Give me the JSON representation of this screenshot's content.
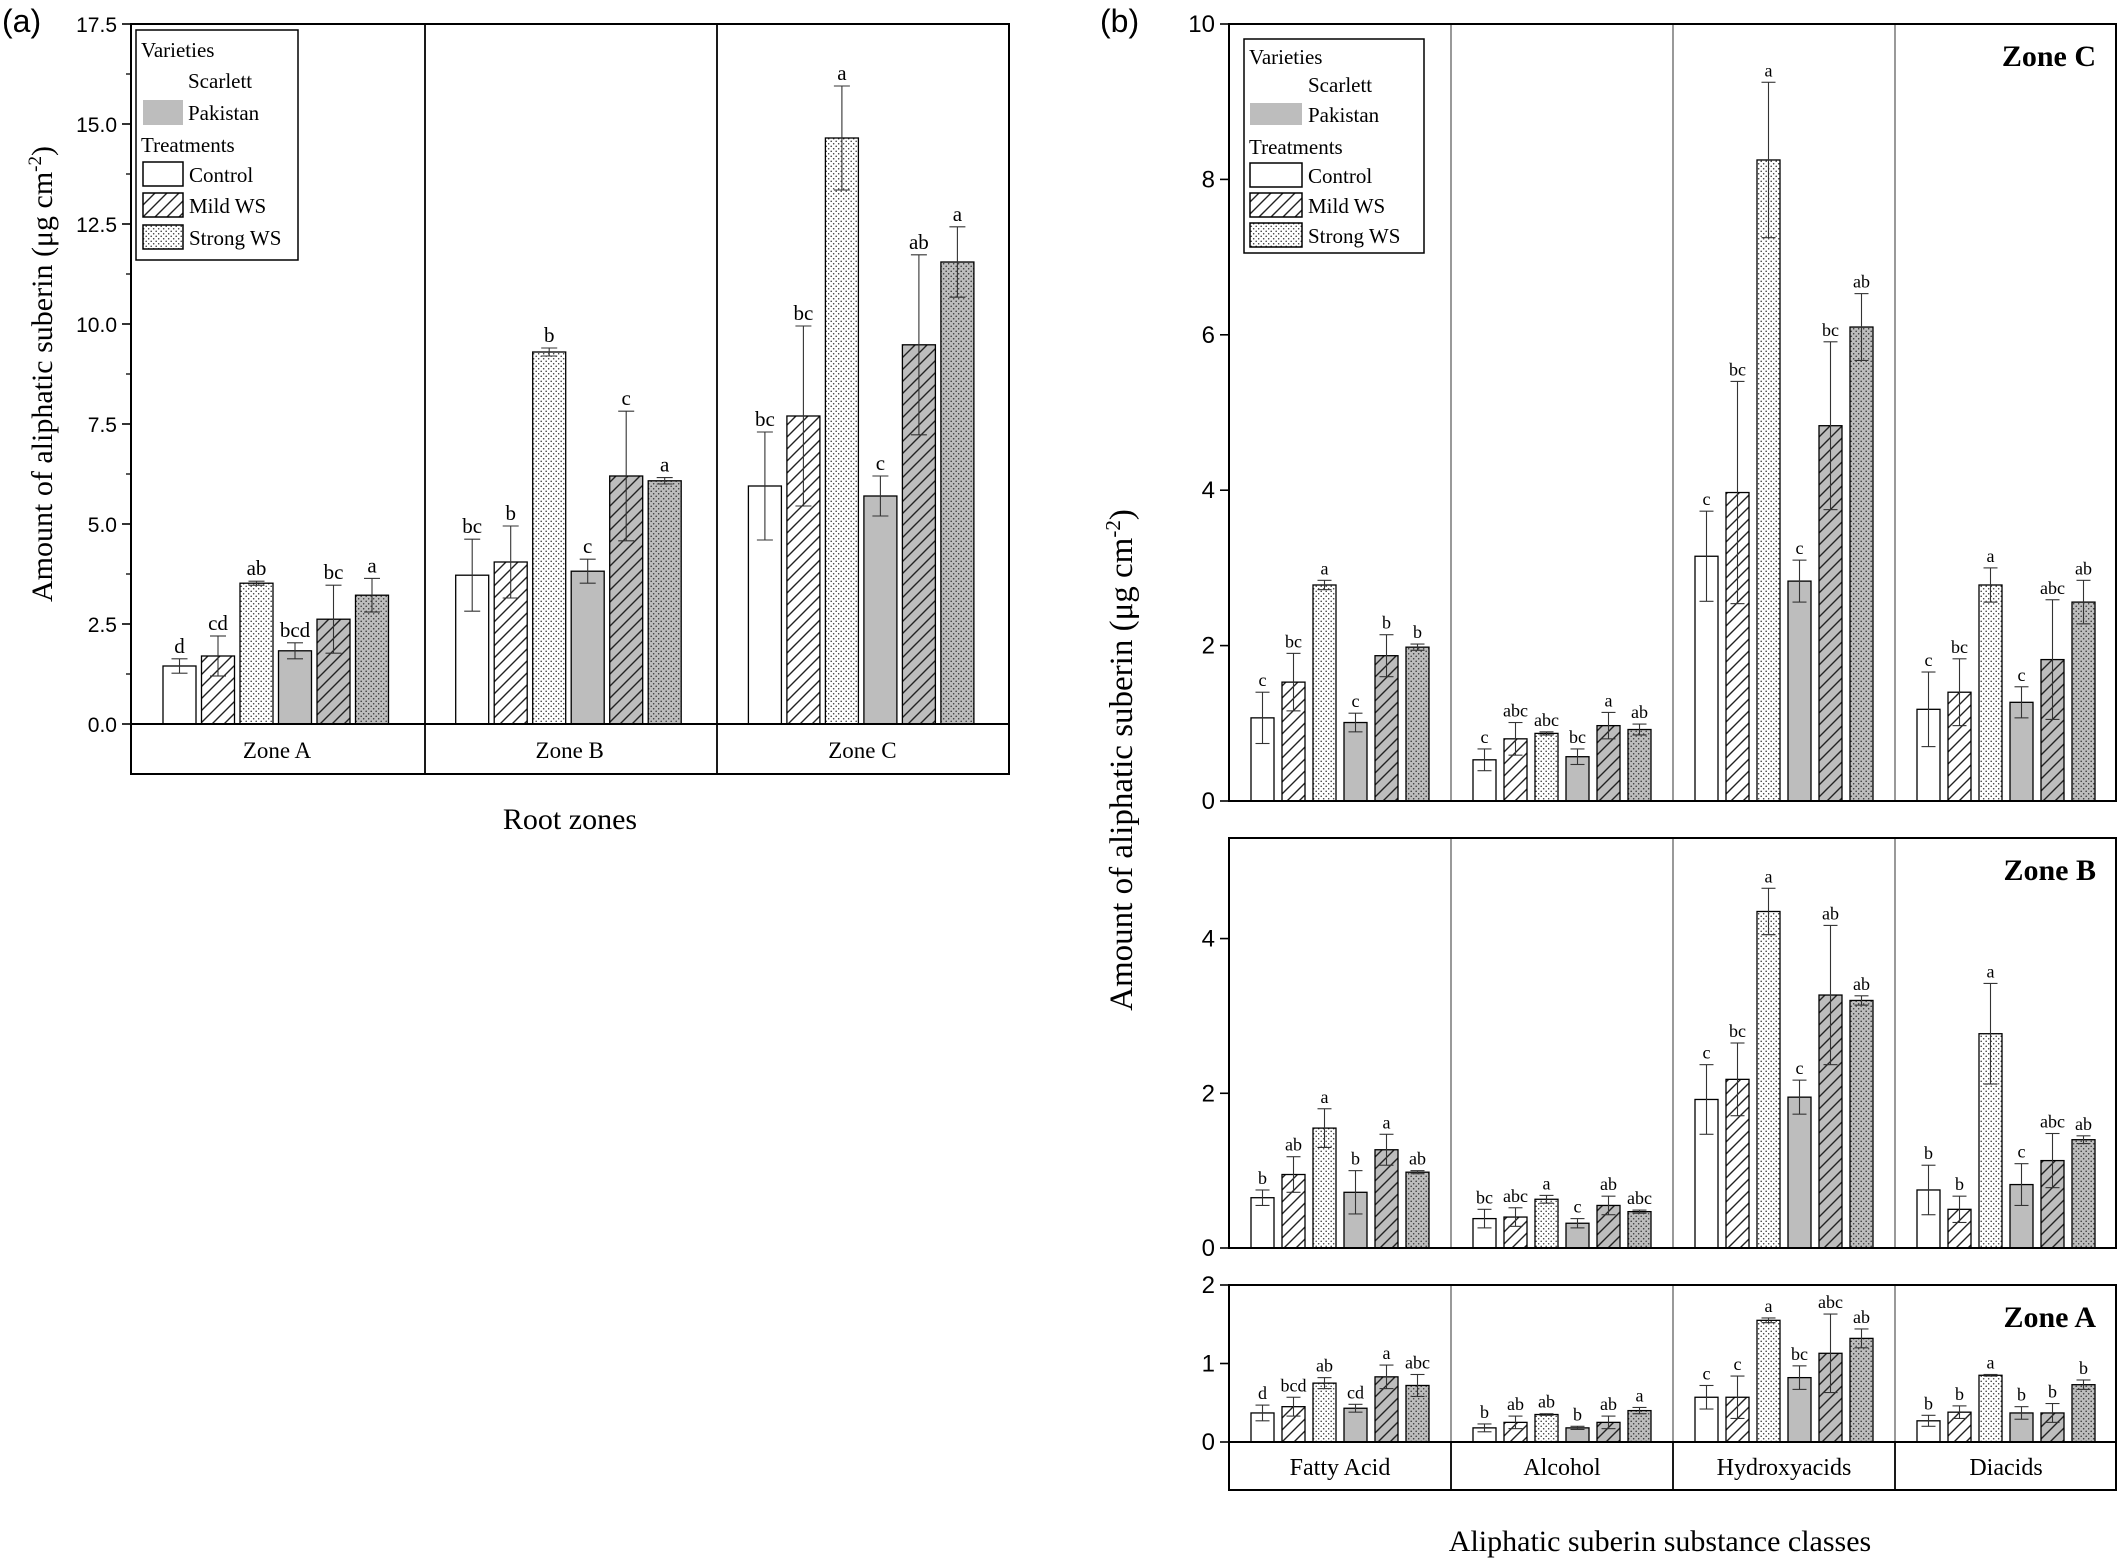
{
  "colors": {
    "scarlett": "#ffffff",
    "pakistan": "#bdbdbd",
    "axis": "#000000",
    "error_bar": "#333333"
  },
  "chart_data": [
    {
      "panel_label": "(a)",
      "type": "bar",
      "xlabel": "Root zones",
      "ylabel": "Amount of aliphatic suberin (μg cm",
      "ylabel_sup": "-2",
      "ylabel_tail": ")",
      "ylim": [
        0,
        17.5
      ],
      "yticks": [
        "0.0",
        "2.5",
        "5.0",
        "7.5",
        "10.0",
        "12.5",
        "15.0",
        "17.5"
      ],
      "categories": [
        "Zone A",
        "Zone B",
        "Zone C"
      ],
      "legend": {
        "varieties_title": "Varieties",
        "varieties": [
          {
            "label": "Scarlett",
            "fill": "none"
          },
          {
            "label": "Pakistan",
            "fill": "gray"
          }
        ],
        "treatments_title": "Treatments",
        "treatments": [
          {
            "label": "Control",
            "pattern": "none"
          },
          {
            "label": "Mild WS",
            "pattern": "hatch"
          },
          {
            "label": "Strong WS",
            "pattern": "dots"
          }
        ]
      },
      "series_order": [
        "Scarlett Control",
        "Scarlett Mild WS",
        "Scarlett Strong WS",
        "Pakistan Control",
        "Pakistan Mild WS",
        "Pakistan Strong WS"
      ],
      "groups": [
        {
          "category": "Zone A",
          "values": [
            1.45,
            1.7,
            3.52,
            1.83,
            2.62,
            3.22
          ],
          "errors": [
            0.18,
            0.5,
            0.05,
            0.2,
            0.85,
            0.42
          ],
          "letters": [
            "d",
            "cd",
            "ab",
            "bcd",
            "bc",
            "a"
          ]
        },
        {
          "category": "Zone B",
          "values": [
            3.72,
            4.05,
            9.3,
            3.82,
            6.2,
            6.08
          ],
          "errors": [
            0.9,
            0.9,
            0.1,
            0.3,
            1.62,
            0.08
          ],
          "letters": [
            "bc",
            "b",
            "b",
            "c",
            "c",
            "a"
          ]
        },
        {
          "category": "Zone C",
          "values": [
            5.95,
            7.7,
            14.65,
            5.7,
            9.48,
            11.55
          ],
          "errors": [
            1.35,
            2.25,
            1.3,
            0.5,
            2.25,
            0.88
          ],
          "letters": [
            "bc",
            "bc",
            "a",
            "c",
            "ab",
            "a"
          ]
        }
      ]
    },
    {
      "panel_label": "(b)",
      "type": "bar",
      "xlabel": "Aliphatic suberin substance classes",
      "ylabel": "Amount of aliphatic suberin (μg cm",
      "ylabel_sup": "-2",
      "ylabel_tail": ")",
      "categories": [
        "Fatty Acid",
        "Alcohol",
        "Hydroxyacids",
        "Diacids"
      ],
      "series_order": [
        "Scarlett Control",
        "Scarlett Mild WS",
        "Scarlett Strong WS",
        "Pakistan Control",
        "Pakistan Mild WS",
        "Pakistan Strong WS"
      ],
      "legend": {
        "varieties_title": "Varieties",
        "varieties": [
          {
            "label": "Scarlett",
            "fill": "none"
          },
          {
            "label": "Pakistan",
            "fill": "gray"
          }
        ],
        "treatments_title": "Treatments",
        "treatments": [
          {
            "label": "Control",
            "pattern": "none"
          },
          {
            "label": "Mild WS",
            "pattern": "hatch"
          },
          {
            "label": "Strong WS",
            "pattern": "dots"
          }
        ]
      },
      "subpanels": [
        {
          "zone_title": "Zone C",
          "ylim": [
            0,
            10
          ],
          "yticks": [
            "0",
            "2",
            "4",
            "6",
            "8",
            "10"
          ],
          "groups": [
            {
              "category": "Fatty Acid",
              "values": [
                1.07,
                1.53,
                2.78,
                1.01,
                1.87,
                1.98
              ],
              "errors": [
                0.33,
                0.37,
                0.06,
                0.12,
                0.27,
                0.04
              ],
              "letters": [
                "c",
                "bc",
                "a",
                "c",
                "b",
                "b"
              ]
            },
            {
              "category": "Alcohol",
              "values": [
                0.53,
                0.8,
                0.87,
                0.57,
                0.97,
                0.92
              ],
              "errors": [
                0.14,
                0.21,
                0.02,
                0.1,
                0.17,
                0.07
              ],
              "letters": [
                "c",
                "abc",
                "abc",
                "bc",
                "a",
                "ab"
              ]
            },
            {
              "category": "Hydroxyacids",
              "values": [
                3.15,
                3.97,
                8.25,
                2.83,
                4.83,
                6.1
              ],
              "errors": [
                0.58,
                1.43,
                1.0,
                0.27,
                1.08,
                0.43
              ],
              "letters": [
                "c",
                "bc",
                "a",
                "c",
                "bc",
                "ab"
              ]
            },
            {
              "category": "Diacids",
              "values": [
                1.18,
                1.4,
                2.78,
                1.27,
                1.82,
                2.56
              ],
              "errors": [
                0.48,
                0.43,
                0.22,
                0.2,
                0.77,
                0.28
              ],
              "letters": [
                "c",
                "bc",
                "a",
                "c",
                "abc",
                "ab"
              ]
            }
          ]
        },
        {
          "zone_title": "Zone B",
          "ylim": [
            0,
            5.3
          ],
          "yticks": [
            "0",
            "2",
            "4"
          ],
          "groups": [
            {
              "category": "Fatty Acid",
              "values": [
                0.65,
                0.95,
                1.55,
                0.72,
                1.27,
                0.98
              ],
              "errors": [
                0.1,
                0.23,
                0.25,
                0.28,
                0.2,
                0.02
              ],
              "letters": [
                "b",
                "ab",
                "a",
                "b",
                "a",
                "ab"
              ]
            },
            {
              "category": "Alcohol",
              "values": [
                0.38,
                0.4,
                0.63,
                0.32,
                0.55,
                0.47
              ],
              "errors": [
                0.12,
                0.12,
                0.05,
                0.06,
                0.12,
                0.02
              ],
              "letters": [
                "bc",
                "abc",
                "a",
                "c",
                "ab",
                "abc"
              ]
            },
            {
              "category": "Hydroxyacids",
              "values": [
                1.92,
                2.18,
                4.35,
                1.95,
                3.27,
                3.2
              ],
              "errors": [
                0.45,
                0.47,
                0.3,
                0.22,
                0.9,
                0.06
              ],
              "letters": [
                "c",
                "bc",
                "a",
                "c",
                "ab",
                "ab"
              ]
            },
            {
              "category": "Diacids",
              "values": [
                0.75,
                0.5,
                2.77,
                0.82,
                1.13,
                1.4
              ],
              "errors": [
                0.32,
                0.17,
                0.65,
                0.27,
                0.35,
                0.05
              ],
              "letters": [
                "b",
                "b",
                "a",
                "c",
                "abc",
                "ab"
              ]
            }
          ]
        },
        {
          "zone_title": "Zone A",
          "ylim": [
            0,
            2
          ],
          "yticks": [
            "0",
            "1",
            "2"
          ],
          "groups": [
            {
              "category": "Fatty Acid",
              "values": [
                0.37,
                0.45,
                0.75,
                0.43,
                0.83,
                0.72
              ],
              "errors": [
                0.1,
                0.12,
                0.07,
                0.05,
                0.15,
                0.14
              ],
              "letters": [
                "d",
                "bcd",
                "ab",
                "cd",
                "a",
                "abc"
              ]
            },
            {
              "category": "Alcohol",
              "values": [
                0.18,
                0.25,
                0.35,
                0.18,
                0.25,
                0.4
              ],
              "errors": [
                0.05,
                0.08,
                0.01,
                0.02,
                0.08,
                0.04
              ],
              "letters": [
                "b",
                "ab",
                "ab",
                "b",
                "ab",
                "a"
              ]
            },
            {
              "category": "Hydroxyacids",
              "values": [
                0.57,
                0.57,
                1.55,
                0.82,
                1.13,
                1.32
              ],
              "errors": [
                0.15,
                0.27,
                0.03,
                0.15,
                0.5,
                0.12
              ],
              "letters": [
                "c",
                "c",
                "a",
                "bc",
                "abc",
                "ab"
              ]
            },
            {
              "category": "Diacids",
              "values": [
                0.27,
                0.38,
                0.85,
                0.37,
                0.37,
                0.73
              ],
              "errors": [
                0.07,
                0.08,
                0.01,
                0.08,
                0.12,
                0.06
              ],
              "letters": [
                "b",
                "b",
                "a",
                "b",
                "b",
                "b"
              ]
            }
          ]
        }
      ]
    }
  ]
}
